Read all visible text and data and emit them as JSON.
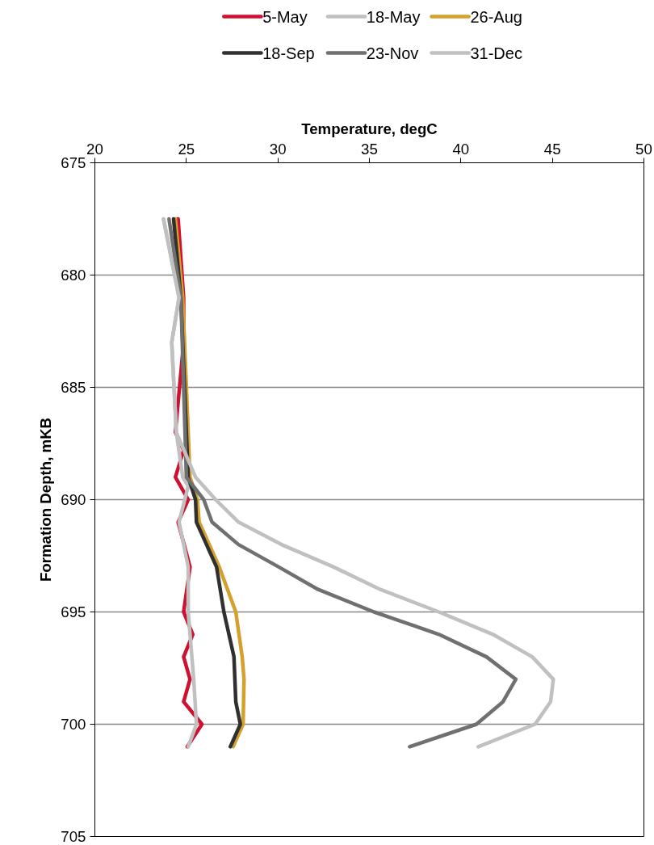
{
  "chart_data": {
    "type": "line",
    "xlabel": "Temperature, degC",
    "ylabel": "Formation Depth, mKB",
    "xlim": [
      20,
      50
    ],
    "xticks": [
      20,
      25,
      30,
      35,
      40,
      45,
      50
    ],
    "ylim": [
      705,
      675
    ],
    "yticks": [
      675,
      680,
      685,
      690,
      695,
      700,
      705
    ],
    "grid": "y",
    "legend": "top",
    "marker": "none",
    "line_style": "solid",
    "series": [
      {
        "name": "5-May",
        "color": "#d01030",
        "x": [
          24.55,
          24.85,
          24.85,
          24.4,
          24.85,
          24.4,
          25.1,
          24.55,
          25.2,
          24.85,
          25.35,
          24.85,
          25.2,
          24.85,
          25.85,
          25.05
        ],
        "values": [
          677.5,
          681,
          683,
          687,
          687.8,
          689,
          690,
          691,
          693,
          695,
          696,
          697,
          698,
          699,
          700,
          701
        ]
      },
      {
        "name": "18-May",
        "color": "#c0c0c0",
        "x": [
          23.75,
          24.6,
          24.2,
          24.45,
          24.8,
          25.1,
          24.6,
          25.1,
          25.1,
          25.4,
          25.55,
          25.1
        ],
        "values": [
          677.5,
          681,
          683,
          687,
          689,
          689.4,
          691,
          693,
          695,
          698,
          700,
          701
        ]
      },
      {
        "name": "26-Aug",
        "color": "#d4a02e",
        "x": [
          24.4,
          24.8,
          25.2,
          25.6,
          25.7,
          26.8,
          27.7,
          28.05,
          28.15,
          28.1,
          27.55
        ],
        "values": [
          677.5,
          681,
          689,
          690,
          691,
          693,
          695,
          697,
          698,
          700,
          701
        ]
      },
      {
        "name": "18-Sep",
        "color": "#303030",
        "x": [
          24.3,
          24.7,
          25.1,
          25.5,
          25.55,
          26.65,
          27.05,
          27.6,
          27.7,
          27.95,
          27.4
        ],
        "values": [
          677.5,
          681,
          689,
          690,
          691,
          693,
          695,
          697,
          699,
          700,
          701
        ]
      },
      {
        "name": "23-Nov",
        "color": "#707070",
        "x": [
          24.05,
          24.7,
          25.0,
          25.95,
          26.4,
          27.85,
          30.05,
          32.2,
          35.25,
          38.8,
          41.4,
          43.0,
          42.3,
          40.85,
          37.2
        ],
        "values": [
          677.5,
          681,
          689,
          690,
          691,
          692,
          693,
          694,
          695,
          696,
          697,
          698,
          699,
          700,
          701
        ]
      },
      {
        "name": "31-Dec",
        "color": "#c0c0c0",
        "x": [
          23.75,
          24.6,
          24.2,
          24.45,
          25.5,
          26.6,
          27.85,
          30.2,
          33.05,
          35.6,
          38.8,
          41.75,
          43.9,
          45.05,
          44.9,
          44.05,
          40.95
        ],
        "values": [
          677.5,
          681,
          683,
          687,
          689,
          690,
          691,
          692,
          693,
          694,
          695,
          696,
          697,
          698,
          699,
          700,
          701
        ]
      }
    ]
  }
}
